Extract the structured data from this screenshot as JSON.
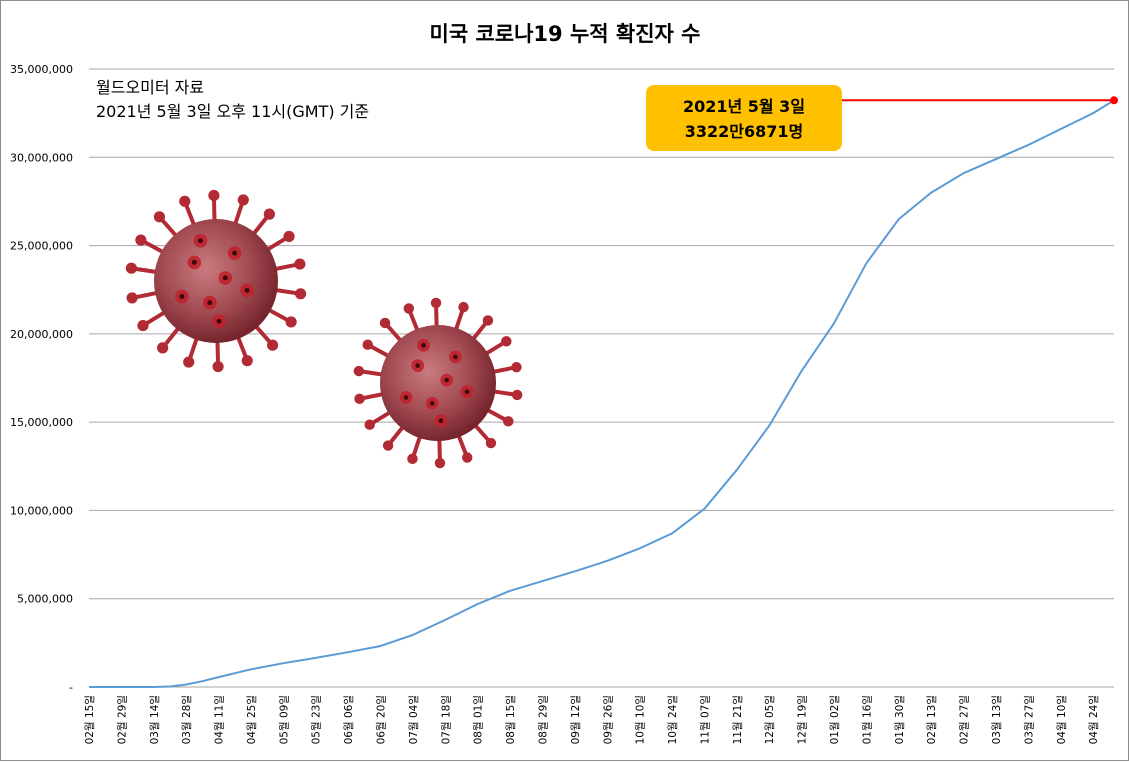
{
  "colors": {
    "line": "#5b9bd5",
    "grid": "#a6a6a6",
    "callout_fill": "#ffc000",
    "pointer": "#ff0000",
    "virus": "#b22a33"
  },
  "chart_data": {
    "type": "line",
    "title": "미국 코로나19 누적 확진자 수",
    "xlabel": "",
    "ylabel": "",
    "ylim": [
      0,
      35000000
    ],
    "ytick_values": [
      0,
      5000000,
      10000000,
      15000000,
      20000000,
      25000000,
      30000000,
      35000000
    ],
    "ytick_labels": [
      "-",
      "5,000,000",
      "10,000,000",
      "15,000,000",
      "20,000,000",
      "25,000,000",
      "30,000,000",
      "35,000,000"
    ],
    "xtick_labels": [
      "02월 15일",
      "02월 29일",
      "03월 14일",
      "03월 28일",
      "04월 11일",
      "04월 25일",
      "05월 09일",
      "05월 23일",
      "06월 06일",
      "06월 20일",
      "07월 04일",
      "07월 18일",
      "08월 01일",
      "08월 15일",
      "08월 29일",
      "09월 12일",
      "09월 26일",
      "10월 10일",
      "10월 24일",
      "11월 07일",
      "11월 21일",
      "12월 05일",
      "12월 19일",
      "01월 02일",
      "01월 16일",
      "01월 30일",
      "02월 13일",
      "02월 27일",
      "03월 13일",
      "03월 27일",
      "04월 10일",
      "04월 24일"
    ],
    "grid": true,
    "legend": "none",
    "source_note": [
      "월드오미터 자료",
      "2021년 5월 3일 오후 11시(GMT) 기준"
    ],
    "annotation": {
      "lines": [
        "2021년 5월 3일",
        "3322만6871명"
      ],
      "date": "2021-05-03",
      "value": 33226871
    },
    "series": [
      {
        "x": [
          "2020-02-15",
          "2020-03-01",
          "2020-03-14",
          "2020-03-21",
          "2020-03-28",
          "2020-04-04",
          "2020-04-11",
          "2020-04-25",
          "2020-05-09",
          "2020-05-23",
          "2020-06-06",
          "2020-06-20",
          "2020-07-04",
          "2020-07-18",
          "2020-08-01",
          "2020-08-15",
          "2020-08-29",
          "2020-09-12",
          "2020-09-26",
          "2020-10-10",
          "2020-10-24",
          "2020-11-07",
          "2020-11-21",
          "2020-12-05",
          "2020-12-19",
          "2021-01-02",
          "2021-01-16",
          "2021-01-30",
          "2021-02-13",
          "2021-02-27",
          "2021-03-13",
          "2021-03-27",
          "2021-04-10",
          "2021-04-24",
          "2021-05-03"
        ],
        "values": [
          15,
          70,
          2700,
          26000,
          140000,
          330000,
          560000,
          1000000,
          1350000,
          1650000,
          1970000,
          2320000,
          2950000,
          3800000,
          4700000,
          5450000,
          6000000,
          6550000,
          7150000,
          7850000,
          8700000,
          10100000,
          12300000,
          14800000,
          17900000,
          20600000,
          24000000,
          26500000,
          28000000,
          29100000,
          29900000,
          30700000,
          31600000,
          32500000,
          33226871
        ]
      }
    ]
  }
}
